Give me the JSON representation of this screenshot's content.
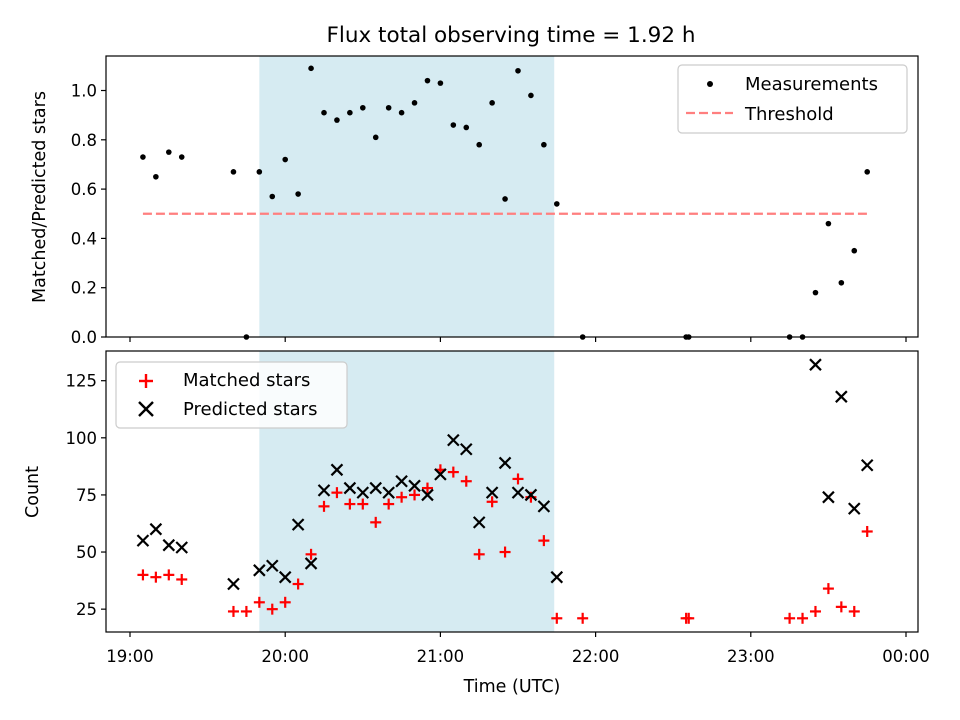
{
  "figure": {
    "title": "Flux total observing time = 1.92 h"
  },
  "chart_data": [
    {
      "type": "scatter",
      "panel": "top",
      "title": "Flux total observing time = 1.92 h",
      "xlabel": "",
      "ylabel": "Matched/Predicted stars",
      "x_axis": "time (UTC)",
      "xlim": [
        "19:00",
        "00:00"
      ],
      "ylim": [
        0,
        1.14
      ],
      "yticks": [
        0.0,
        0.2,
        0.4,
        0.6,
        0.8,
        1.0
      ],
      "ytick_labels": [
        "0.0",
        "0.2",
        "0.4",
        "0.6",
        "0.8",
        "1.0"
      ],
      "shaded_interval": [
        "19:50",
        "21:44"
      ],
      "shade_color": "#add8e6",
      "legend": {
        "placement": "upper right",
        "entries": [
          "Measurements",
          "Threshold"
        ]
      },
      "series": [
        {
          "name": "Measurements",
          "marker": "dot",
          "color": "#000000",
          "x": [
            "19:05",
            "19:10",
            "19:15",
            "19:20",
            "19:40",
            "19:45",
            "19:50",
            "19:55",
            "20:00",
            "20:05",
            "20:10",
            "20:15",
            "20:20",
            "20:25",
            "20:30",
            "20:35",
            "20:40",
            "20:45",
            "20:50",
            "20:55",
            "21:00",
            "21:05",
            "21:10",
            "21:15",
            "21:20",
            "21:25",
            "21:30",
            "21:35",
            "21:40",
            "21:45",
            "21:55",
            "22:35",
            "22:36",
            "23:15",
            "23:20",
            "23:25",
            "23:30",
            "23:35",
            "23:40",
            "23:45"
          ],
          "y": [
            0.73,
            0.65,
            0.75,
            0.73,
            0.67,
            0.0,
            0.67,
            0.57,
            0.72,
            0.58,
            1.09,
            0.91,
            0.88,
            0.91,
            0.93,
            0.81,
            0.93,
            0.91,
            0.95,
            1.04,
            1.03,
            0.86,
            0.85,
            0.78,
            0.95,
            0.56,
            1.08,
            0.98,
            0.78,
            0.54,
            0.0,
            0.0,
            0.0,
            0.0,
            0.0,
            0.18,
            0.46,
            0.22,
            0.35,
            0.67
          ]
        },
        {
          "name": "Threshold",
          "style": "dashed",
          "color": "#ff7f7f",
          "x": [
            "19:05",
            "23:45"
          ],
          "y": [
            0.5,
            0.5
          ]
        }
      ]
    },
    {
      "type": "scatter",
      "panel": "bottom",
      "xlabel": "Time (UTC)",
      "ylabel": "Count",
      "xlim": [
        "19:00",
        "00:00"
      ],
      "xticks": [
        "19:00",
        "20:00",
        "21:00",
        "22:00",
        "23:00",
        "00:00"
      ],
      "ylim": [
        15,
        138
      ],
      "yticks": [
        25,
        50,
        75,
        100,
        125
      ],
      "ytick_labels": [
        "25",
        "50",
        "75",
        "100",
        "125"
      ],
      "shaded_interval": [
        "19:50",
        "21:44"
      ],
      "shade_color": "#add8e6",
      "legend": {
        "placement": "upper left",
        "entries": [
          "Matched stars",
          "Predicted stars"
        ]
      },
      "series": [
        {
          "name": "Matched stars",
          "marker": "plus",
          "color": "#ff0000",
          "x": [
            "19:05",
            "19:10",
            "19:15",
            "19:20",
            "19:40",
            "19:45",
            "19:50",
            "19:55",
            "20:00",
            "20:05",
            "20:10",
            "20:15",
            "20:20",
            "20:25",
            "20:30",
            "20:35",
            "20:40",
            "20:45",
            "20:50",
            "20:55",
            "21:00",
            "21:05",
            "21:10",
            "21:15",
            "21:20",
            "21:25",
            "21:30",
            "21:35",
            "21:40",
            "21:45",
            "21:55",
            "22:35",
            "22:36",
            "23:15",
            "23:20",
            "23:25",
            "23:30",
            "23:35",
            "23:40",
            "23:45"
          ],
          "y": [
            40,
            39,
            40,
            38,
            24,
            24,
            28,
            25,
            28,
            36,
            49,
            70,
            76,
            71,
            71,
            63,
            71,
            74,
            75,
            78,
            86,
            85,
            81,
            49,
            72,
            50,
            82,
            74,
            55,
            21,
            21,
            21,
            21,
            21,
            21,
            24,
            34,
            26,
            24,
            59
          ]
        },
        {
          "name": "Predicted stars",
          "marker": "x",
          "color": "#000000",
          "x": [
            "19:05",
            "19:10",
            "19:15",
            "19:20",
            "19:40",
            "19:50",
            "19:55",
            "20:00",
            "20:05",
            "20:10",
            "20:15",
            "20:20",
            "20:25",
            "20:30",
            "20:35",
            "20:40",
            "20:45",
            "20:50",
            "20:55",
            "21:00",
            "21:05",
            "21:10",
            "21:15",
            "21:20",
            "21:25",
            "21:30",
            "21:35",
            "21:40",
            "21:45",
            "23:25",
            "23:30",
            "23:35",
            "23:40",
            "23:45"
          ],
          "y": [
            55,
            60,
            53,
            52,
            36,
            42,
            44,
            39,
            62,
            45,
            77,
            86,
            78,
            76,
            78,
            76,
            81,
            79,
            75,
            84,
            99,
            95,
            63,
            76,
            89,
            76,
            75,
            70,
            39,
            132,
            74,
            118,
            69,
            88
          ]
        }
      ]
    }
  ]
}
